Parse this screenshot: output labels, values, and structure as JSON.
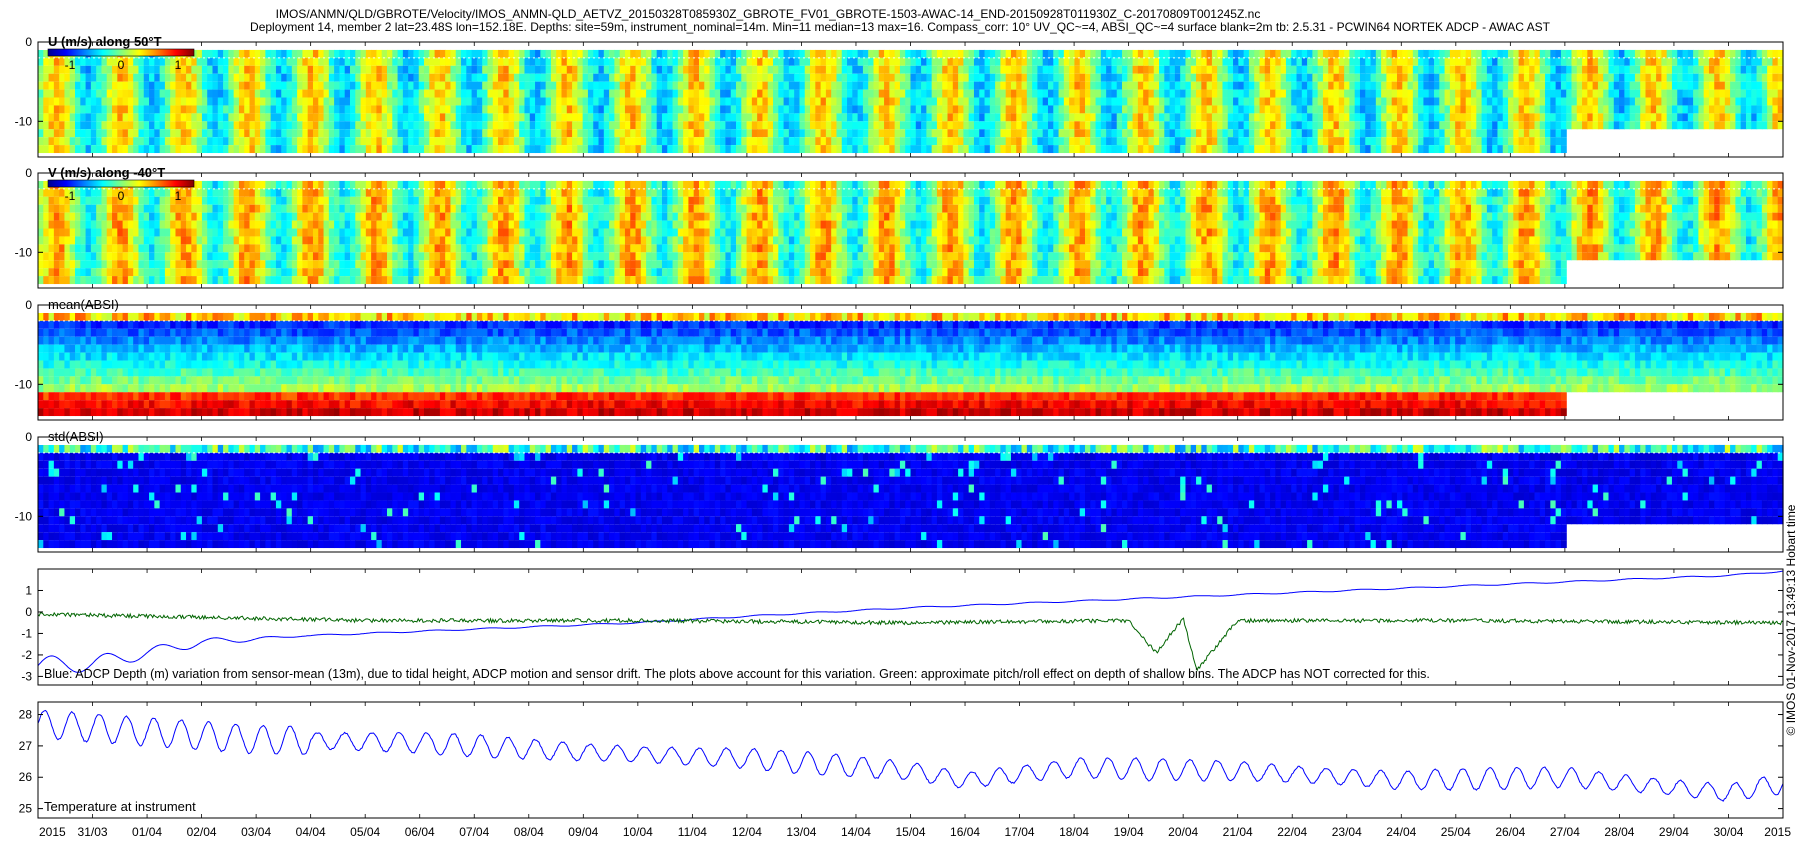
{
  "header": {
    "line1": "IMOS/ANMN/QLD/GBROTE/Velocity/IMOS_ANMN-QLD_AETVZ_20150328T085930Z_GBROTE_FV01_GBROTE-1503-AWAC-14_END-20150928T011930Z_C-20170809T001245Z.nc",
    "line2": "Deployment 14, member 2 lat=23.48S lon=152.18E. Depths: site=59m, instrument_nominal=14m. Min=11 median=13 max=16. Compass_corr: 10° UV_QC~=4, ABSI_QC~=4 surface blank=2m tb: 2.5.31 - PCWIN64 NORTEK ADCP - AWAC AST"
  },
  "side_note": "© IMOS 01-Nov-2017 13:49:13 Hobart time",
  "colors": {
    "depth_line": "#0000ff",
    "pitch_line": "#006400",
    "temperature_line": "#0000ff"
  },
  "colorbar": {
    "colormap": "jet",
    "ticks": [
      "-1",
      "0",
      "1"
    ],
    "range": [
      -1,
      1
    ]
  },
  "x_axis": {
    "start": "2015-03-30",
    "end": "2015-05-01",
    "ticks": [
      {
        "date": "2015-03-30",
        "label": "2015"
      },
      {
        "date": "2015-03-31",
        "label": "31/03"
      },
      {
        "date": "2015-04-01",
        "label": "01/04"
      },
      {
        "date": "2015-04-02",
        "label": "02/04"
      },
      {
        "date": "2015-04-03",
        "label": "03/04"
      },
      {
        "date": "2015-04-04",
        "label": "04/04"
      },
      {
        "date": "2015-04-05",
        "label": "05/04"
      },
      {
        "date": "2015-04-06",
        "label": "06/04"
      },
      {
        "date": "2015-04-07",
        "label": "07/04"
      },
      {
        "date": "2015-04-08",
        "label": "08/04"
      },
      {
        "date": "2015-04-09",
        "label": "09/04"
      },
      {
        "date": "2015-04-10",
        "label": "10/04"
      },
      {
        "date": "2015-04-11",
        "label": "11/04"
      },
      {
        "date": "2015-04-12",
        "label": "12/04"
      },
      {
        "date": "2015-04-13",
        "label": "13/04"
      },
      {
        "date": "2015-04-14",
        "label": "14/04"
      },
      {
        "date": "2015-04-15",
        "label": "15/04"
      },
      {
        "date": "2015-04-16",
        "label": "16/04"
      },
      {
        "date": "2015-04-17",
        "label": "17/04"
      },
      {
        "date": "2015-04-18",
        "label": "18/04"
      },
      {
        "date": "2015-04-19",
        "label": "19/04"
      },
      {
        "date": "2015-04-20",
        "label": "20/04"
      },
      {
        "date": "2015-04-21",
        "label": "21/04"
      },
      {
        "date": "2015-04-22",
        "label": "22/04"
      },
      {
        "date": "2015-04-23",
        "label": "23/04"
      },
      {
        "date": "2015-04-24",
        "label": "24/04"
      },
      {
        "date": "2015-04-25",
        "label": "25/04"
      },
      {
        "date": "2015-04-26",
        "label": "26/04"
      },
      {
        "date": "2015-04-27",
        "label": "27/04"
      },
      {
        "date": "2015-04-28",
        "label": "28/04"
      },
      {
        "date": "2015-04-29",
        "label": "29/04"
      },
      {
        "date": "2015-04-30",
        "label": "30/04"
      },
      {
        "date": "2015-05-01",
        "label": "2015"
      }
    ]
  },
  "chart_data": [
    {
      "type": "heatmap",
      "title": "U (m/s) along 50°T",
      "ylim": [
        -14.5,
        0
      ],
      "yticks": [
        0,
        -10
      ],
      "ytick_labels": [
        "0",
        "-10"
      ],
      "colorbar": true,
      "colormap": "jet",
      "vrange": [
        -1,
        1
      ],
      "pattern": "banded",
      "bottom_depth": [
        {
          "from": "2015-03-30",
          "to": "2015-04-27",
          "depth": -14
        },
        {
          "from": "2015-04-27",
          "to": "2015-05-01",
          "depth": -11
        }
      ]
    },
    {
      "type": "heatmap",
      "title": "V (m/s) along -40°T",
      "ylim": [
        -14.5,
        0
      ],
      "yticks": [
        0,
        -10
      ],
      "ytick_labels": [
        "0",
        "-10"
      ],
      "colorbar": true,
      "colormap": "jet",
      "vrange": [
        -1,
        1
      ],
      "pattern": "banded",
      "bottom_depth": [
        {
          "from": "2015-03-30",
          "to": "2015-04-27",
          "depth": -14
        },
        {
          "from": "2015-04-27",
          "to": "2015-05-01",
          "depth": -11
        }
      ]
    },
    {
      "type": "heatmap",
      "title": "mean(ABSI)",
      "ylim": [
        -14.5,
        0
      ],
      "yticks": [
        0,
        -10
      ],
      "ytick_labels": [
        "0",
        "-10"
      ],
      "colorbar": false,
      "colormap": "jet",
      "pattern": "layered",
      "bottom_depth": [
        {
          "from": "2015-03-30",
          "to": "2015-04-27",
          "depth": -14
        },
        {
          "from": "2015-04-27",
          "to": "2015-05-01",
          "depth": -11
        }
      ]
    },
    {
      "type": "heatmap",
      "title": "std(ABSI)",
      "ylim": [
        -14.5,
        0
      ],
      "yticks": [
        0,
        -10
      ],
      "ytick_labels": [
        "0",
        "-10"
      ],
      "colorbar": false,
      "colormap": "jet",
      "pattern": "low",
      "bottom_depth": [
        {
          "from": "2015-03-30",
          "to": "2015-04-27",
          "depth": -14
        },
        {
          "from": "2015-04-27",
          "to": "2015-05-01",
          "depth": -11
        }
      ]
    },
    {
      "type": "line",
      "annotation": "Blue: ADCP Depth (m) variation from sensor-mean (13m), due to tidal height, ADCP motion and sensor drift. The plots above account for this variation. Green: approximate pitch/roll effect on depth of shallow bins. The ADCP has NOT corrected for this.",
      "ylim": [
        -3.4,
        2
      ],
      "yticks": [
        1,
        0,
        -1,
        -2,
        -3
      ],
      "ytick_labels": [
        "1",
        "0",
        "-1",
        "-2",
        "-3"
      ],
      "series": [
        {
          "color": "#0000ff",
          "x": [
            "2015-03-30",
            "2015-03-31",
            "2015-04-01",
            "2015-04-02",
            "2015-04-04",
            "2015-04-06",
            "2015-04-08",
            "2015-04-10",
            "2015-04-12",
            "2015-04-15",
            "2015-04-18",
            "2015-04-21",
            "2015-04-24",
            "2015-04-27",
            "2015-04-30",
            "2015-05-01"
          ],
          "y": [
            -2.5,
            -2.4,
            -1.9,
            -1.4,
            -1.1,
            -0.9,
            -0.7,
            -0.5,
            -0.2,
            0.2,
            0.5,
            0.8,
            1.1,
            1.4,
            1.7,
            1.9
          ]
        },
        {
          "color": "#006400",
          "x": [
            "2015-03-30",
            "2015-04-05",
            "2015-04-10",
            "2015-04-15",
            "2015-04-19",
            "2015-04-19T12:00",
            "2015-04-20",
            "2015-04-20T06:00",
            "2015-04-21",
            "2015-04-25",
            "2015-05-01"
          ],
          "y": [
            -0.1,
            -0.4,
            -0.4,
            -0.5,
            -0.4,
            -1.9,
            -0.3,
            -2.7,
            -0.4,
            -0.4,
            -0.5
          ]
        }
      ]
    },
    {
      "type": "line",
      "title": "Temperature at instrument",
      "ylim": [
        24.7,
        28.4
      ],
      "yticks": [
        28,
        27,
        26,
        25
      ],
      "ytick_labels": [
        "28",
        "27",
        "26",
        "25"
      ],
      "series": [
        {
          "color": "#0000ff",
          "x": [
            "2015-03-30",
            "2015-04-03",
            "2015-04-06",
            "2015-04-09",
            "2015-04-12",
            "2015-04-15",
            "2015-04-16",
            "2015-04-18",
            "2015-04-21",
            "2015-04-24",
            "2015-04-27",
            "2015-04-30",
            "2015-05-01"
          ],
          "y": [
            27.7,
            27.2,
            27.1,
            26.8,
            26.6,
            26.2,
            25.9,
            26.3,
            26.2,
            25.9,
            26.0,
            25.5,
            25.8
          ]
        }
      ]
    }
  ]
}
